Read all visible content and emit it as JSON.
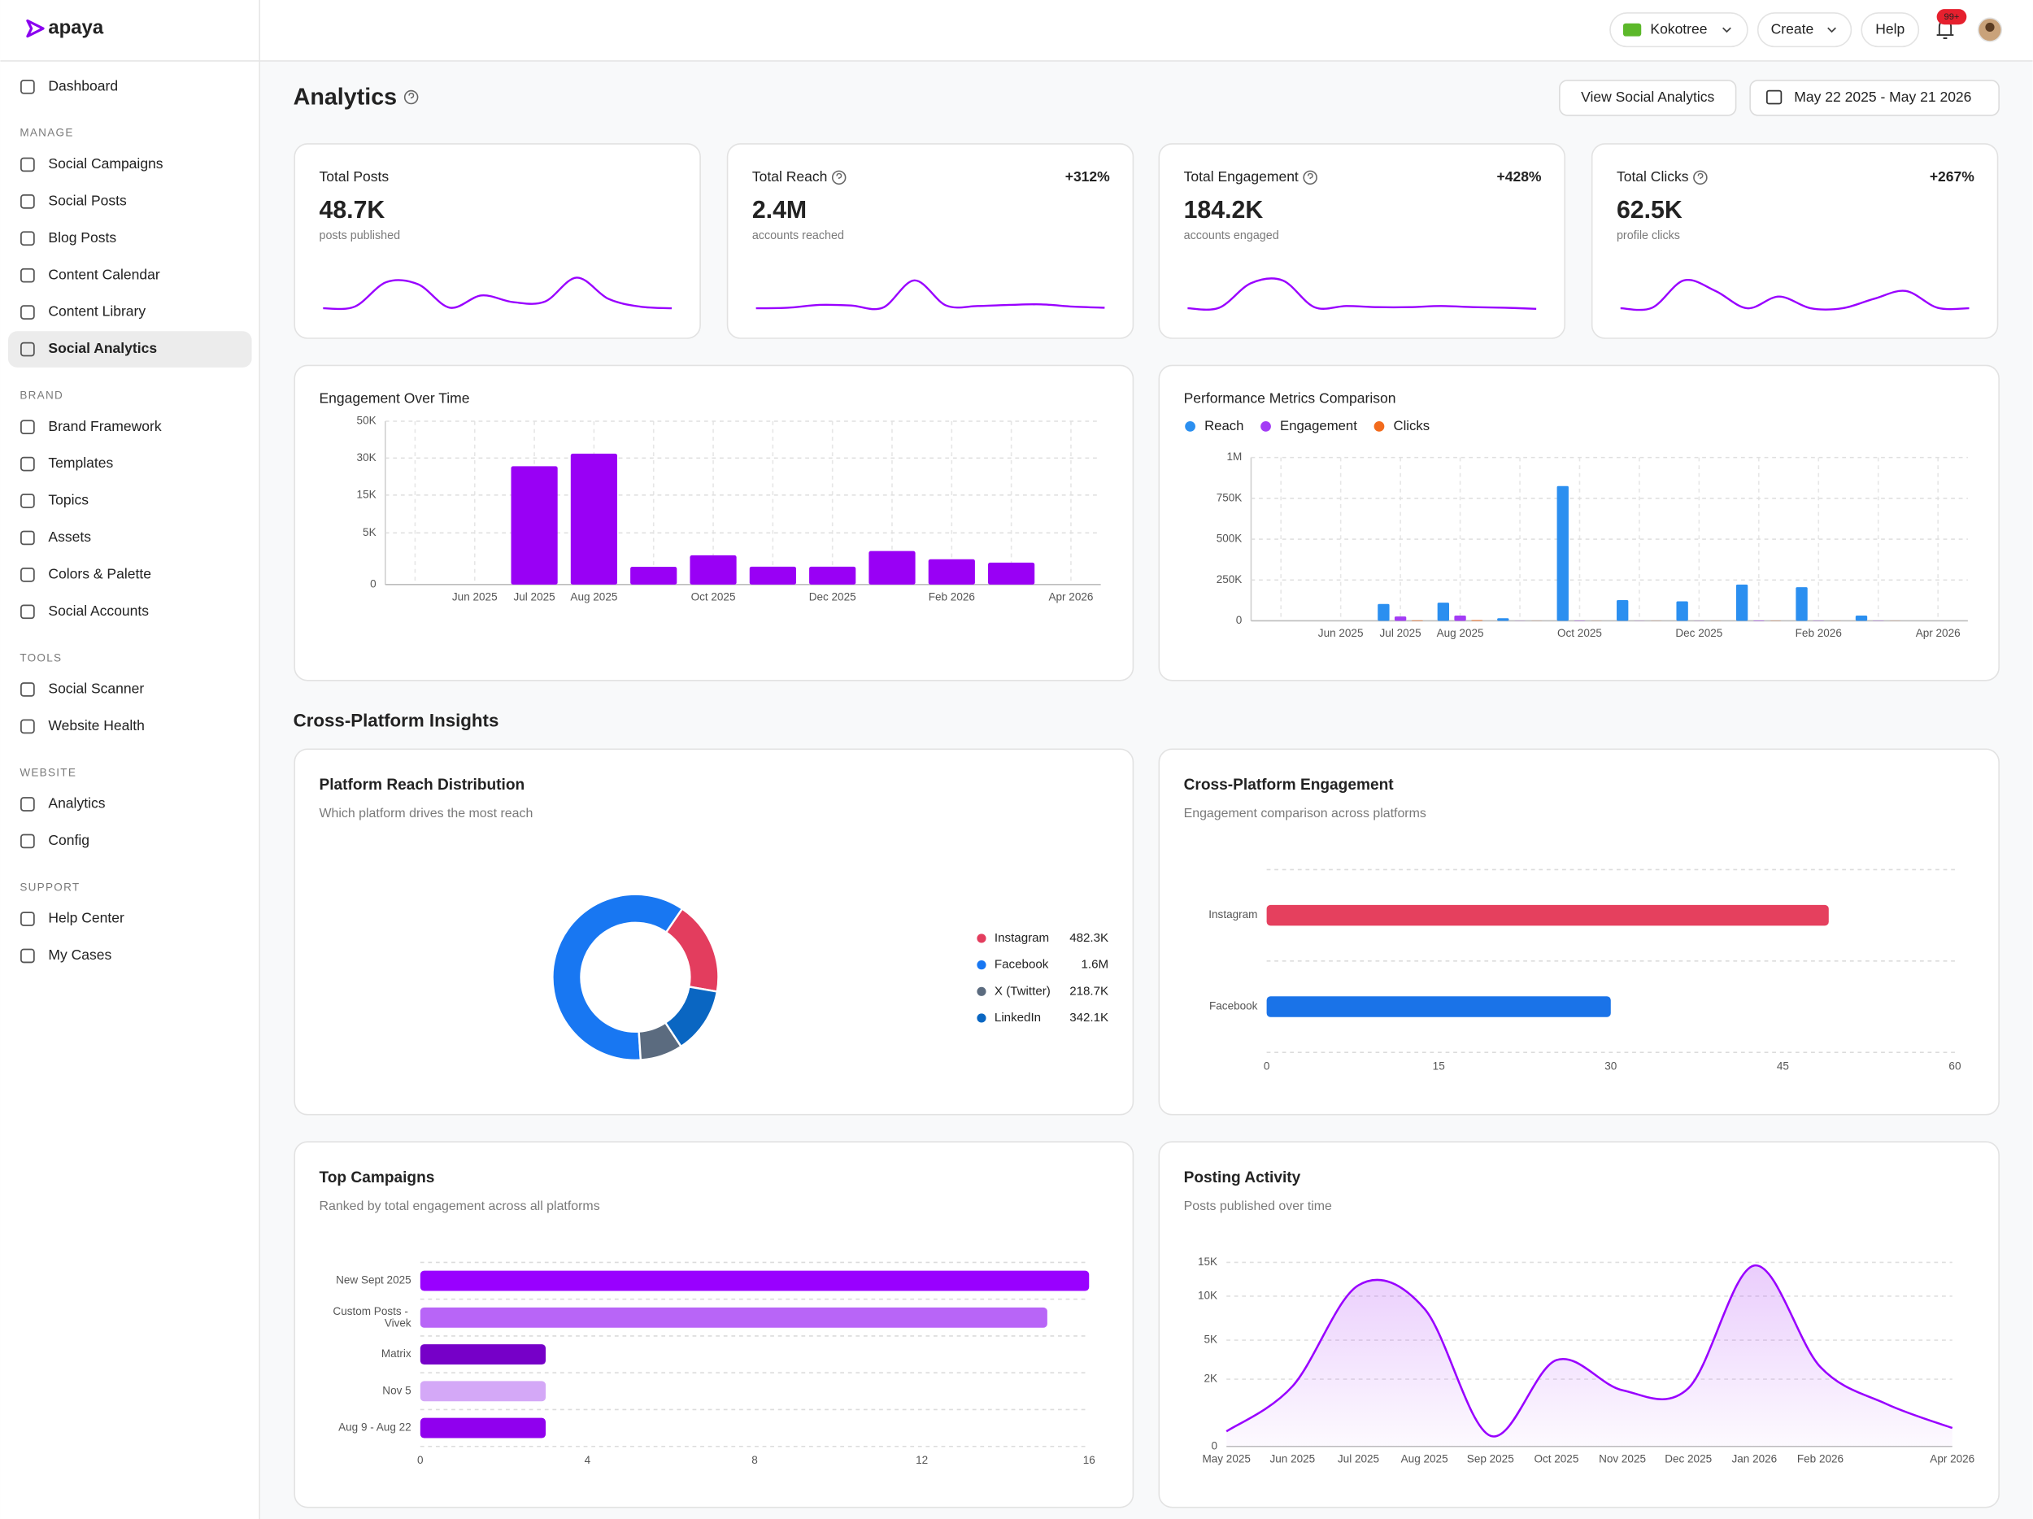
{
  "sidebar": {
    "logo": "apaya",
    "top_item": "Dashboard",
    "active": "Social Analytics",
    "sections": [
      {
        "label": "MANAGE",
        "items": [
          "Social Campaigns",
          "Social Posts",
          "Blog Posts",
          "Content Calendar",
          "Content Library",
          "Social Analytics"
        ]
      },
      {
        "label": "BRAND",
        "items": [
          "Brand Framework",
          "Templates",
          "Topics",
          "Assets",
          "Colors & Palette",
          "Social Accounts"
        ]
      },
      {
        "label": "TOOLS",
        "items": [
          "Social Scanner",
          "Website Health"
        ]
      },
      {
        "label": "WEBSITE",
        "items": [
          "Analytics",
          "Config"
        ]
      },
      {
        "label": "SUPPORT",
        "items": [
          "Help Center",
          "My Cases"
        ]
      }
    ]
  },
  "header": {
    "workspace": "Kokotree",
    "create": "Create",
    "help": "Help",
    "notifications": "99+"
  },
  "page": {
    "title": "Analytics",
    "view_button": "View Social Analytics",
    "date_range": "May 22 2025 - May 21 2026",
    "section_title": "Cross-Platform Insights"
  },
  "kpis": [
    {
      "title": "Total Posts",
      "value": "48.7K",
      "caption": "posts published",
      "info_icon": false,
      "sparkline": [
        5,
        8,
        52,
        48,
        6,
        28,
        16,
        17,
        60,
        22,
        8,
        5
      ]
    },
    {
      "title": "Total Reach",
      "value": "2.4M",
      "caption": "accounts reached",
      "change": "+312%",
      "info_icon": true,
      "sparkline": [
        5,
        6,
        11,
        10,
        6,
        55,
        10,
        9,
        11,
        12,
        8,
        6
      ]
    },
    {
      "title": "Total Engagement",
      "value": "184.2K",
      "caption": "accounts engaged",
      "change": "+428%",
      "info_icon": true,
      "sparkline": [
        5,
        6,
        50,
        55,
        7,
        9,
        7,
        7,
        9,
        7,
        6,
        4
      ]
    },
    {
      "title": "Total Clicks",
      "value": "62.5K",
      "caption": "profile clicks",
      "change": "+267%",
      "info_icon": true,
      "sparkline": [
        5,
        6,
        55,
        36,
        5,
        26,
        5,
        5,
        22,
        36,
        6,
        5
      ]
    }
  ],
  "chart_data": [
    {
      "type": "bar",
      "title": "Engagement Over Time",
      "categories": [
        null,
        "Jun 2025",
        "Jul 2025",
        "Aug 2025",
        null,
        "Oct 2025",
        null,
        "Dec 2025",
        null,
        "Feb 2026",
        null,
        "Apr 2026"
      ],
      "values": [
        0,
        0,
        26250,
        32100,
        590,
        1600,
        600,
        600,
        2100,
        1200,
        900,
        0
      ],
      "color": "#9900f5",
      "ylim": [
        0,
        50000
      ],
      "yticks": [
        0,
        {
          "value": 5000,
          "label": "5K"
        },
        {
          "value": 15000,
          "label": "15K"
        },
        {
          "value": 30000,
          "label": "30K"
        },
        {
          "value": 50000,
          "label": "50K"
        }
      ],
      "scale": "sqrt",
      "grid": true
    },
    {
      "type": "grouped_bar",
      "title": "Performance Metrics Comparison",
      "categories": [
        null,
        "Jun 2025",
        "Jul 2025",
        "Aug 2025",
        null,
        "Oct 2025",
        null,
        "Dec 2025",
        null,
        "Feb 2026",
        null,
        "Apr 2026"
      ],
      "series": [
        {
          "name": "Reach",
          "color": "#2b8ff0",
          "values": [
            0,
            0,
            103000,
            111000,
            16000,
            825000,
            127000,
            119000,
            222000,
            206000,
            32000,
            0
          ]
        },
        {
          "name": "Engagement",
          "color": "#a33cf5",
          "values": [
            0,
            0,
            26250,
            32100,
            590,
            1600,
            600,
            600,
            2100,
            1200,
            900,
            0
          ]
        },
        {
          "name": "Clicks",
          "color": "#f26b1d",
          "values": [
            0,
            0,
            3000,
            4000,
            100,
            500,
            100,
            100,
            800,
            300,
            200,
            0
          ]
        }
      ],
      "ylim": [
        0,
        1000000
      ],
      "yticks": [
        0,
        {
          "value": 250000,
          "label": "250K"
        },
        {
          "value": 500000,
          "label": "500K"
        },
        {
          "value": 750000,
          "label": "750K"
        },
        {
          "value": 1000000,
          "label": "1M"
        }
      ],
      "grid": true,
      "legend": "top-left"
    },
    {
      "type": "donut",
      "title": "Platform Reach Distribution",
      "subtitle": "Which platform drives the most reach",
      "categories": [
        "Instagram",
        "Facebook",
        "X (Twitter)",
        "LinkedIn"
      ],
      "values": [
        482300,
        1600000,
        218700,
        342100
      ],
      "value_labels": [
        "482.3K",
        "1.6M",
        "218.7K",
        "342.1K"
      ],
      "colors": [
        "#e33d5e",
        "#1877f2",
        "#5b6b7f",
        "#0a66c2"
      ],
      "legend": "right"
    },
    {
      "type": "hbar",
      "title": "Cross-Platform Engagement",
      "subtitle": "Engagement comparison across platforms",
      "categories": [
        "Instagram",
        "Facebook"
      ],
      "values": [
        49,
        30
      ],
      "colors": [
        "#e5405e",
        "#1a73e8"
      ],
      "xlim": [
        0,
        60
      ],
      "xticks": [
        0,
        15,
        30,
        45,
        60
      ],
      "grid": true
    },
    {
      "type": "hbar",
      "title": "Top Campaigns",
      "subtitle": "Ranked by total engagement across all platforms",
      "categories": [
        "New Sept 2025",
        "Custom Posts - Vivek",
        "Matrix",
        "Nov 5",
        "Aug 9 - Aug 22"
      ],
      "values": [
        16,
        15,
        3,
        3,
        3
      ],
      "colors": [
        "#9900ff",
        "#b865f7",
        "#7600c8",
        "#d4a8f7",
        "#9000ee"
      ],
      "xlim": [
        0,
        16
      ],
      "xticks": [
        0,
        4,
        8,
        12,
        16
      ],
      "grid": true
    },
    {
      "type": "area",
      "title": "Posting Activity",
      "subtitle": "Posts published over time",
      "categories": [
        "May 2025",
        "Jun 2025",
        "Jul 2025",
        "Aug 2025",
        "Sep 2025",
        "Oct 2025",
        "Nov 2025",
        "Dec 2025",
        "Jan 2026",
        "Feb 2026",
        null,
        "Apr 2026"
      ],
      "values": [
        100,
        1600,
        11500,
        8400,
        50,
        3300,
        1400,
        1500,
        14500,
        2800,
        800,
        150
      ],
      "color": "#9900ff",
      "ylim": [
        0,
        15000
      ],
      "yticks": [
        0,
        {
          "value": 2000,
          "label": "2K"
        },
        {
          "value": 5000,
          "label": "5K"
        },
        {
          "value": 10000,
          "label": "10K"
        },
        {
          "value": 15000,
          "label": "15K"
        }
      ],
      "scale": "sqrt",
      "grid": true
    }
  ]
}
